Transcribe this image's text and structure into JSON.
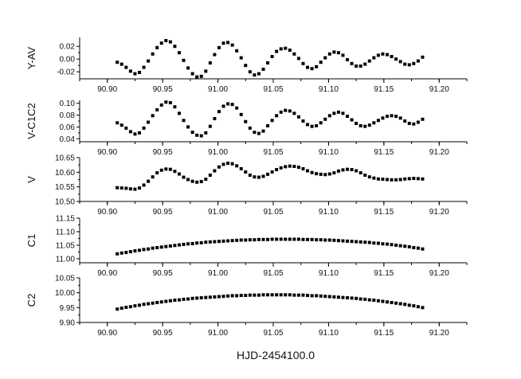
{
  "figure": {
    "xlabel": "HJD-2454100.0"
  },
  "chart_data": [
    {
      "type": "scatter",
      "ylabel": "Y-AV",
      "xlim": [
        90.875,
        91.225
      ],
      "ylim": [
        -0.031,
        0.034
      ],
      "x_ticks": [
        "90.90",
        "90.95",
        "91.00",
        "91.05",
        "91.10",
        "91.15",
        "91.20"
      ],
      "y_ticks": [
        "0.02",
        "0.00",
        "-0.02"
      ],
      "y_tick_values": [
        0.02,
        0.0,
        -0.02
      ],
      "x": [
        90.909,
        90.913,
        90.917,
        90.921,
        90.925,
        90.929,
        90.933,
        90.937,
        90.941,
        90.945,
        90.949,
        90.953,
        90.957,
        90.961,
        90.965,
        90.969,
        90.973,
        90.977,
        90.981,
        90.985,
        90.989,
        90.993,
        90.997,
        91.001,
        91.005,
        91.009,
        91.013,
        91.017,
        91.021,
        91.025,
        91.029,
        91.033,
        91.037,
        91.041,
        91.045,
        91.049,
        91.053,
        91.057,
        91.061,
        91.065,
        91.069,
        91.073,
        91.077,
        91.081,
        91.085,
        91.089,
        91.093,
        91.097,
        91.101,
        91.105,
        91.109,
        91.113,
        91.117,
        91.121,
        91.125,
        91.129,
        91.133,
        91.137,
        91.141,
        91.145,
        91.149,
        91.153,
        91.157,
        91.161,
        91.165,
        91.169,
        91.173,
        91.177,
        91.181,
        91.185
      ],
      "y": [
        -0.005,
        -0.008,
        -0.013,
        -0.019,
        -0.023,
        -0.021,
        -0.013,
        -0.003,
        0.008,
        0.018,
        0.025,
        0.029,
        0.027,
        0.02,
        0.01,
        -0.002,
        -0.014,
        -0.023,
        -0.028,
        -0.027,
        -0.019,
        -0.006,
        0.007,
        0.018,
        0.025,
        0.026,
        0.022,
        0.013,
        0.002,
        -0.01,
        -0.02,
        -0.025,
        -0.023,
        -0.016,
        -0.006,
        0.004,
        0.012,
        0.016,
        0.017,
        0.014,
        0.008,
        0.001,
        -0.007,
        -0.013,
        -0.015,
        -0.012,
        -0.005,
        0.002,
        0.008,
        0.011,
        0.01,
        0.006,
        -0.001,
        -0.007,
        -0.011,
        -0.011,
        -0.008,
        -0.003,
        0.002,
        0.006,
        0.008,
        0.007,
        0.004,
        0.0,
        -0.004,
        -0.008,
        -0.009,
        -0.007,
        -0.003,
        0.003
      ]
    },
    {
      "type": "scatter",
      "ylabel": "V-C1C2",
      "xlim": [
        90.875,
        91.225
      ],
      "ylim": [
        0.035,
        0.105
      ],
      "x_ticks": [
        "90.90",
        "90.95",
        "91.00",
        "91.05",
        "91.10",
        "91.15",
        "91.20"
      ],
      "y_ticks": [
        "0.10",
        "0.08",
        "0.06",
        "0.04"
      ],
      "y_tick_values": [
        0.1,
        0.08,
        0.06,
        0.04
      ],
      "x": [
        90.909,
        90.913,
        90.917,
        90.921,
        90.925,
        90.929,
        90.933,
        90.937,
        90.941,
        90.945,
        90.949,
        90.953,
        90.957,
        90.961,
        90.965,
        90.969,
        90.973,
        90.977,
        90.981,
        90.985,
        90.989,
        90.993,
        90.997,
        91.001,
        91.005,
        91.009,
        91.013,
        91.017,
        91.021,
        91.025,
        91.029,
        91.033,
        91.037,
        91.041,
        91.045,
        91.049,
        91.053,
        91.057,
        91.061,
        91.065,
        91.069,
        91.073,
        91.077,
        91.081,
        91.085,
        91.089,
        91.093,
        91.097,
        91.101,
        91.105,
        91.109,
        91.113,
        91.117,
        91.121,
        91.125,
        91.129,
        91.133,
        91.137,
        91.141,
        91.145,
        91.149,
        91.153,
        91.157,
        91.161,
        91.165,
        91.169,
        91.173,
        91.177,
        91.181,
        91.185
      ],
      "y": [
        0.067,
        0.063,
        0.058,
        0.052,
        0.048,
        0.05,
        0.058,
        0.068,
        0.079,
        0.089,
        0.097,
        0.102,
        0.101,
        0.094,
        0.083,
        0.071,
        0.06,
        0.051,
        0.046,
        0.045,
        0.05,
        0.061,
        0.074,
        0.086,
        0.095,
        0.099,
        0.098,
        0.092,
        0.081,
        0.069,
        0.058,
        0.051,
        0.049,
        0.053,
        0.062,
        0.071,
        0.079,
        0.085,
        0.088,
        0.087,
        0.083,
        0.077,
        0.07,
        0.064,
        0.061,
        0.062,
        0.067,
        0.073,
        0.079,
        0.083,
        0.085,
        0.083,
        0.078,
        0.072,
        0.066,
        0.062,
        0.061,
        0.063,
        0.067,
        0.071,
        0.075,
        0.078,
        0.079,
        0.078,
        0.075,
        0.07,
        0.066,
        0.065,
        0.068,
        0.073
      ]
    },
    {
      "type": "scatter",
      "ylabel": "V",
      "xlim": [
        90.875,
        91.225
      ],
      "ylim": [
        10.5,
        10.65
      ],
      "x_ticks": [
        "90.90",
        "90.95",
        "91.00",
        "91.05",
        "91.10",
        "91.15",
        "91.20"
      ],
      "y_ticks": [
        "10.65",
        "10.60",
        "10.55",
        "10.50"
      ],
      "y_tick_values": [
        10.65,
        10.6,
        10.55,
        10.5
      ],
      "x": [
        90.909,
        90.913,
        90.917,
        90.921,
        90.925,
        90.929,
        90.933,
        90.937,
        90.941,
        90.945,
        90.949,
        90.953,
        90.957,
        90.961,
        90.965,
        90.969,
        90.973,
        90.977,
        90.981,
        90.985,
        90.989,
        90.993,
        90.997,
        91.001,
        91.005,
        91.009,
        91.013,
        91.017,
        91.021,
        91.025,
        91.029,
        91.033,
        91.037,
        91.041,
        91.045,
        91.049,
        91.053,
        91.057,
        91.061,
        91.065,
        91.069,
        91.073,
        91.077,
        91.081,
        91.085,
        91.089,
        91.093,
        91.097,
        91.101,
        91.105,
        91.109,
        91.113,
        91.117,
        91.121,
        91.125,
        91.129,
        91.133,
        91.137,
        91.141,
        91.145,
        91.149,
        91.153,
        91.157,
        91.161,
        91.165,
        91.169,
        91.173,
        91.177,
        91.181,
        91.185
      ],
      "y": [
        10.547,
        10.546,
        10.545,
        10.543,
        10.542,
        10.546,
        10.556,
        10.569,
        10.584,
        10.598,
        10.607,
        10.611,
        10.61,
        10.603,
        10.594,
        10.583,
        10.575,
        10.569,
        10.566,
        10.568,
        10.576,
        10.59,
        10.605,
        10.618,
        10.627,
        10.631,
        10.629,
        10.622,
        10.612,
        10.601,
        10.59,
        10.584,
        10.583,
        10.586,
        10.593,
        10.601,
        10.609,
        10.615,
        10.619,
        10.621,
        10.62,
        10.617,
        10.612,
        10.605,
        10.599,
        10.595,
        10.593,
        10.592,
        10.594,
        10.598,
        10.604,
        10.608,
        10.61,
        10.609,
        10.605,
        10.598,
        10.59,
        10.584,
        10.58,
        10.577,
        10.576,
        10.575,
        10.574,
        10.574,
        10.575,
        10.577,
        10.578,
        10.579,
        10.578,
        10.577
      ]
    },
    {
      "type": "scatter",
      "ylabel": "C1",
      "xlim": [
        90.875,
        91.225
      ],
      "ylim": [
        10.985,
        11.15
      ],
      "x_ticks": [
        "90.90",
        "90.95",
        "91.00",
        "91.05",
        "91.10",
        "91.15",
        "91.20"
      ],
      "y_ticks": [
        "11.15",
        "11.10",
        "11.05",
        "11.00"
      ],
      "y_tick_values": [
        11.15,
        11.1,
        11.05,
        11.0
      ],
      "x": [
        90.909,
        90.913,
        90.917,
        90.921,
        90.925,
        90.929,
        90.933,
        90.937,
        90.941,
        90.945,
        90.949,
        90.953,
        90.957,
        90.961,
        90.965,
        90.969,
        90.973,
        90.977,
        90.981,
        90.985,
        90.989,
        90.993,
        90.997,
        91.001,
        91.005,
        91.009,
        91.013,
        91.017,
        91.021,
        91.025,
        91.029,
        91.033,
        91.037,
        91.041,
        91.045,
        91.049,
        91.053,
        91.057,
        91.061,
        91.065,
        91.069,
        91.073,
        91.077,
        91.081,
        91.085,
        91.089,
        91.093,
        91.097,
        91.101,
        91.105,
        91.109,
        91.113,
        91.117,
        91.121,
        91.125,
        91.129,
        91.133,
        91.137,
        91.141,
        91.145,
        91.149,
        91.153,
        91.157,
        91.161,
        91.165,
        91.169,
        91.173,
        91.177,
        91.181,
        91.185
      ],
      "y": [
        11.018,
        11.021,
        11.023,
        11.026,
        11.029,
        11.031,
        11.034,
        11.036,
        11.039,
        11.041,
        11.043,
        11.045,
        11.047,
        11.049,
        11.051,
        11.053,
        11.055,
        11.056,
        11.058,
        11.059,
        11.061,
        11.062,
        11.063,
        11.064,
        11.065,
        11.066,
        11.067,
        11.068,
        11.069,
        11.069,
        11.07,
        11.07,
        11.071,
        11.071,
        11.071,
        11.072,
        11.072,
        11.072,
        11.072,
        11.072,
        11.072,
        11.072,
        11.071,
        11.071,
        11.071,
        11.07,
        11.07,
        11.069,
        11.069,
        11.068,
        11.067,
        11.066,
        11.065,
        11.064,
        11.063,
        11.062,
        11.061,
        11.06,
        11.058,
        11.057,
        11.055,
        11.054,
        11.052,
        11.05,
        11.048,
        11.046,
        11.044,
        11.041,
        11.039,
        11.036
      ]
    },
    {
      "type": "scatter",
      "ylabel": "C2",
      "xlim": [
        90.875,
        91.225
      ],
      "ylim": [
        9.9,
        10.05
      ],
      "x_ticks": [
        "90.90",
        "90.95",
        "91.00",
        "91.05",
        "91.10",
        "91.15",
        "91.20"
      ],
      "y_ticks": [
        "10.05",
        "10.00",
        "9.95",
        "9.90"
      ],
      "y_tick_values": [
        10.05,
        10.0,
        9.95,
        9.9
      ],
      "x": [
        90.909,
        90.913,
        90.917,
        90.921,
        90.925,
        90.929,
        90.933,
        90.937,
        90.941,
        90.945,
        90.949,
        90.953,
        90.957,
        90.961,
        90.965,
        90.969,
        90.973,
        90.977,
        90.981,
        90.985,
        90.989,
        90.993,
        90.997,
        91.001,
        91.005,
        91.009,
        91.013,
        91.017,
        91.021,
        91.025,
        91.029,
        91.033,
        91.037,
        91.041,
        91.045,
        91.049,
        91.053,
        91.057,
        91.061,
        91.065,
        91.069,
        91.073,
        91.077,
        91.081,
        91.085,
        91.089,
        91.093,
        91.097,
        91.101,
        91.105,
        91.109,
        91.113,
        91.117,
        91.121,
        91.125,
        91.129,
        91.133,
        91.137,
        91.141,
        91.145,
        91.149,
        91.153,
        91.157,
        91.161,
        91.165,
        91.169,
        91.173,
        91.177,
        91.181,
        91.185
      ],
      "y": [
        9.945,
        9.948,
        9.951,
        9.953,
        9.956,
        9.958,
        9.961,
        9.963,
        9.965,
        9.967,
        9.969,
        9.971,
        9.973,
        9.975,
        9.976,
        9.978,
        9.979,
        9.981,
        9.982,
        9.983,
        9.984,
        9.985,
        9.986,
        9.987,
        9.988,
        9.989,
        9.99,
        9.99,
        9.991,
        9.991,
        9.992,
        9.992,
        9.992,
        9.993,
        9.993,
        9.993,
        9.993,
        9.993,
        9.993,
        9.993,
        9.992,
        9.992,
        9.992,
        9.991,
        9.99,
        9.99,
        9.989,
        9.988,
        9.987,
        9.986,
        9.985,
        9.984,
        9.983,
        9.982,
        9.981,
        9.979,
        9.978,
        9.976,
        9.975,
        9.973,
        9.971,
        9.969,
        9.967,
        9.965,
        9.963,
        9.961,
        9.958,
        9.956,
        9.953,
        9.95
      ]
    }
  ]
}
